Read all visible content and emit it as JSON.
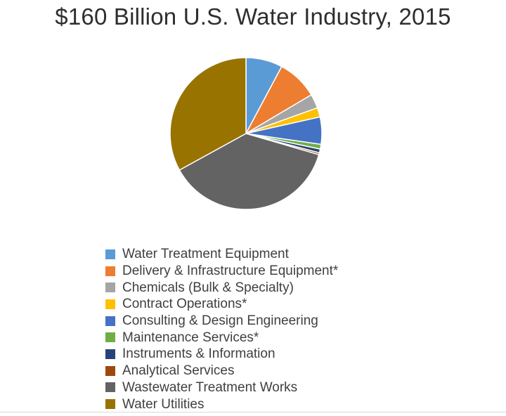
{
  "chart_data": {
    "type": "pie",
    "title": "$160 Billion U.S. Water Industry, 2015",
    "total_billion_usd": 160,
    "legend_position": "bottom",
    "slices": [
      {
        "label": "Water Treatment Equipment",
        "value": 7.8,
        "color": "#5B9BD5"
      },
      {
        "label": "Delivery & Infrastructure Equipment*",
        "value": 8.7,
        "color": "#ED7D31"
      },
      {
        "label": "Chemicals (Bulk & Specialty)",
        "value": 3.0,
        "color": "#A5A5A5"
      },
      {
        "label": "Contract Operations*",
        "value": 2.0,
        "color": "#FFC000"
      },
      {
        "label": "Consulting & Design Engineering",
        "value": 5.8,
        "color": "#4472C4"
      },
      {
        "label": "Maintenance Services*",
        "value": 1.0,
        "color": "#70AD47"
      },
      {
        "label": "Instruments & Information",
        "value": 0.8,
        "color": "#264478"
      },
      {
        "label": "Analytical Services",
        "value": 0.4,
        "color": "#9E480E"
      },
      {
        "label": "Wastewater Treatment Works",
        "value": 37.5,
        "color": "#636363"
      },
      {
        "label": "Water Utilities",
        "value": 33.0,
        "color": "#997300"
      }
    ]
  }
}
